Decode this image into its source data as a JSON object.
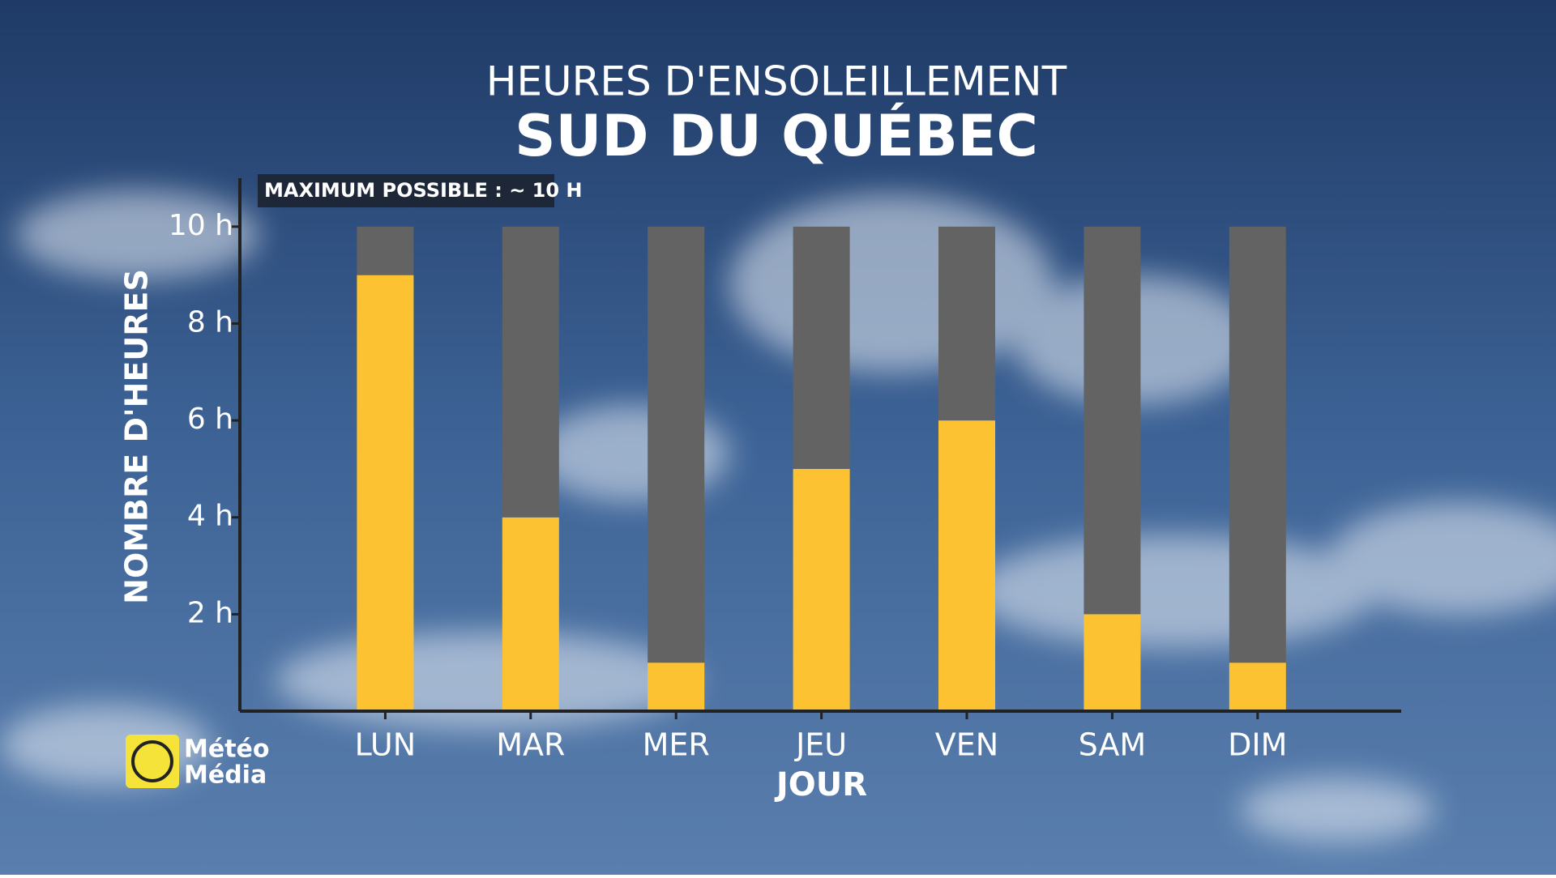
{
  "chart_data": {
    "type": "stacked-bar",
    "title": "HEURES D'ENSOLEILLEMENT",
    "subtitle": "SUD DU QUÉBEC",
    "annotation": "MAXIMUM POSSIBLE : ~ 10 H",
    "x_label": "JOUR",
    "y_label": "NOMBRE D'HEURES",
    "categories": [
      "LUN",
      "MAR",
      "MER",
      "JEU",
      "VEN",
      "SAM",
      "DIM"
    ],
    "series": [
      {
        "color": "#fdc231",
        "values": [
          9,
          4,
          1,
          5,
          6,
          2,
          1
        ]
      },
      {
        "color": "#636363",
        "values": [
          1,
          6,
          9,
          5,
          4,
          8,
          9
        ]
      }
    ],
    "ylim": [
      0,
      11
    ],
    "yticks": [
      {
        "value": 2,
        "label": "2 h"
      },
      {
        "value": 4,
        "label": "4 h"
      },
      {
        "value": 6,
        "label": "6 h"
      },
      {
        "value": 8,
        "label": "8 h"
      },
      {
        "value": 10,
        "label": "10 h"
      }
    ]
  },
  "logo": {
    "line1": "Météo",
    "line2": "Média"
  }
}
